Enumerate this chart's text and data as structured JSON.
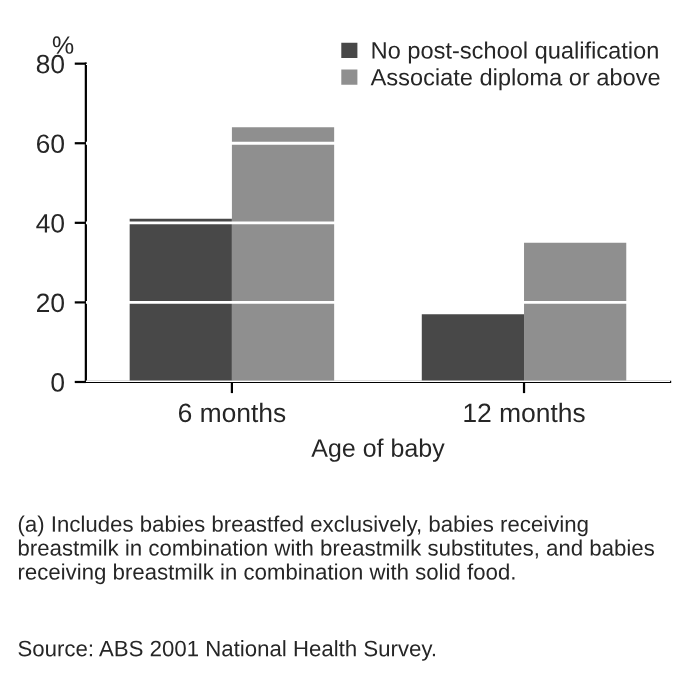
{
  "chart_data": {
    "type": "bar",
    "ylabel": "%",
    "xlabel": "Age of baby",
    "categories": [
      "6 months",
      "12 months"
    ],
    "series": [
      {
        "name": "No post-school qualification",
        "color": "#484848",
        "values": [
          41,
          17
        ]
      },
      {
        "name": "Associate diploma or above",
        "color": "#8f8f8f",
        "values": [
          64,
          35
        ]
      }
    ],
    "ylim": [
      0,
      80
    ],
    "yticks": [
      0,
      20,
      40,
      60,
      80
    ],
    "grid": "y",
    "legend": "top right",
    "annotations": [
      "(a) Includes babies breastfed exclusively, babies receiving breastmilk in combination with breastmilk substitutes, and babies receiving breastmilk in combination with solid food.",
      "Source: ABS 2001 National Health Survey."
    ]
  }
}
